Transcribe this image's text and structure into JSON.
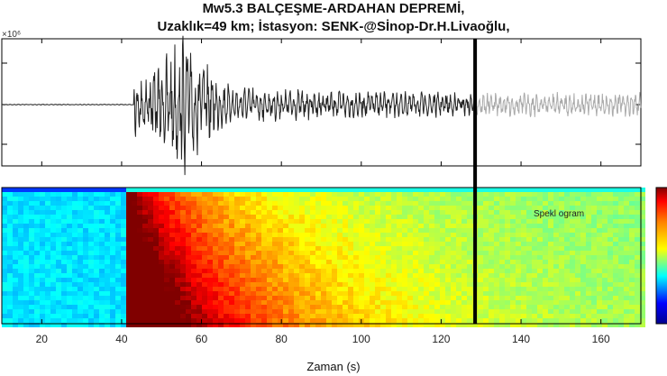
{
  "chart_data": {
    "type": "line",
    "title_line1": "Mw5.3 BALÇEŞME-ARDAHAN DEPREMİ,",
    "title_line2": "Uzaklık=49 km; İstasyon: SENK-@Sİnop-Dr.H.Livaoğlu,",
    "y_exponent": "×10⁶",
    "xlabel": "Zaman (s)",
    "spectrogram_label": "Spekl ogram",
    "xlim": [
      10,
      170
    ],
    "x_ticks": [
      20,
      40,
      60,
      80,
      100,
      120,
      140,
      160
    ],
    "cursor_time": 128.5,
    "event_onset": 43,
    "peak_amplitude_time": 56,
    "grid": false,
    "colormap": "jet"
  }
}
